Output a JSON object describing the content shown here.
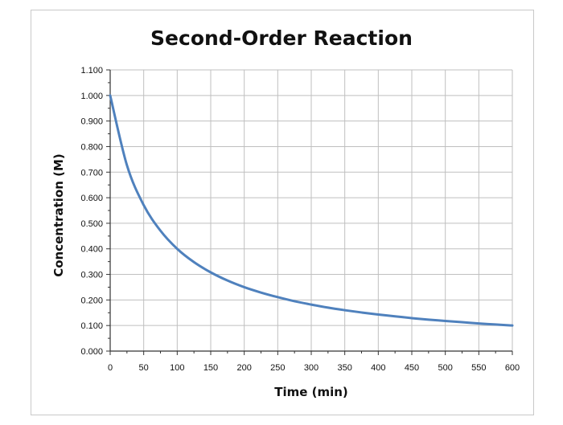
{
  "chart_data": {
    "type": "line",
    "title": "Second-Order Reaction",
    "xlabel": "Time (min)",
    "ylabel": "Concentration (M)",
    "xlim": [
      0,
      600
    ],
    "ylim": [
      0,
      1.1
    ],
    "x_ticks": [
      "0",
      "50",
      "100",
      "150",
      "200",
      "250",
      "300",
      "350",
      "400",
      "450",
      "500",
      "550",
      "600"
    ],
    "y_ticks": [
      "0.000",
      "0.100",
      "0.200",
      "0.300",
      "0.400",
      "0.500",
      "0.600",
      "0.700",
      "0.800",
      "0.900",
      "1.000",
      "1.100"
    ],
    "grid": true,
    "legend": "none",
    "line_color": "#4f81bd",
    "series": [
      {
        "x": [
          0,
          25,
          50,
          75,
          100,
          125,
          150,
          175,
          200,
          225,
          250,
          275,
          300,
          325,
          350,
          375,
          400,
          425,
          450,
          475,
          500,
          525,
          550,
          575,
          600
        ],
        "values": [
          1.0,
          0.727,
          0.571,
          0.471,
          0.4,
          0.348,
          0.308,
          0.276,
          0.25,
          0.229,
          0.211,
          0.195,
          0.182,
          0.17,
          0.16,
          0.151,
          0.143,
          0.136,
          0.129,
          0.123,
          0.118,
          0.113,
          0.108,
          0.104,
          0.1
        ]
      }
    ]
  }
}
